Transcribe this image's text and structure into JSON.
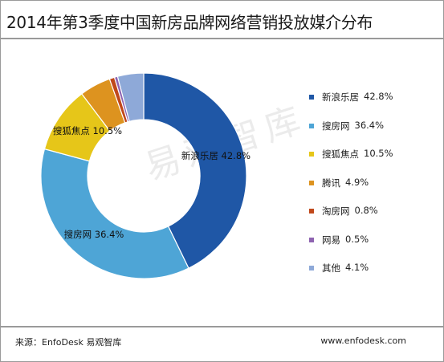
{
  "chart_data": {
    "type": "pie",
    "title": "2014年第3季度中国新房品牌网络营销投放媒介分布",
    "donut": true,
    "legend_position": "right",
    "slices": [
      {
        "label": "新浪乐居",
        "value": 42.8,
        "value_text": "42.8%",
        "color": "#1f57a6"
      },
      {
        "label": "搜房网",
        "value": 36.4,
        "value_text": "36.4%",
        "color": "#4ea5d6"
      },
      {
        "label": "搜狐焦点",
        "value": 10.5,
        "value_text": "10.5%",
        "color": "#e6c619"
      },
      {
        "label": "腾讯",
        "value": 4.9,
        "value_text": "4.9%",
        "color": "#dd931f"
      },
      {
        "label": "淘房网",
        "value": 0.8,
        "value_text": "0.8%",
        "color": "#c0481b"
      },
      {
        "label": "网易",
        "value": 0.5,
        "value_text": "0.5%",
        "color": "#8e63b0"
      },
      {
        "label": "其他",
        "value": 4.1,
        "value_text": "4.1%",
        "color": "#8ea9d8"
      }
    ],
    "labeled_slices": [
      0,
      1,
      2
    ]
  },
  "watermark": "易观智库",
  "footer": {
    "source": "来源：EnfoDesk 易观智库",
    "site": "www.enfodesk.com"
  }
}
